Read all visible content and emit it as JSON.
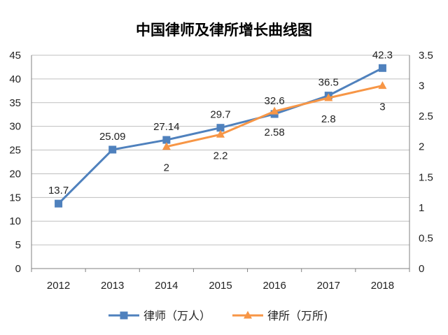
{
  "chart_data": {
    "type": "line",
    "title": "中国律师及律所增长曲线图",
    "categories": [
      "2012",
      "2013",
      "2014",
      "2015",
      "2016",
      "2017",
      "2018"
    ],
    "series": [
      {
        "name": "律师（万人）",
        "axis": "left",
        "color": "#4f81bd",
        "marker": "square",
        "values": [
          13.7,
          25.09,
          27.14,
          29.7,
          32.6,
          36.5,
          42.3
        ],
        "labels": [
          "13.7",
          "25.09",
          "27.14",
          "29.7",
          "32.6",
          "36.5",
          "42.3"
        ]
      },
      {
        "name": "律所（万所)",
        "axis": "right",
        "color": "#f79646",
        "marker": "triangle",
        "values": [
          null,
          null,
          2,
          2.2,
          2.58,
          2.8,
          3
        ],
        "labels": [
          "",
          "",
          "2",
          "2.2",
          "2.58",
          "2.8",
          "3"
        ]
      }
    ],
    "y_left": {
      "ylim": [
        0,
        45
      ],
      "ticks": [
        "0",
        "5",
        "10",
        "15",
        "20",
        "25",
        "30",
        "35",
        "40",
        "45"
      ]
    },
    "y_right": {
      "ylim": [
        0,
        3.5
      ],
      "ticks": [
        "0",
        "0.5",
        "1",
        "1.5",
        "2",
        "2.5",
        "3",
        "3.5"
      ]
    },
    "grid": true,
    "legend_position": "bottom"
  }
}
